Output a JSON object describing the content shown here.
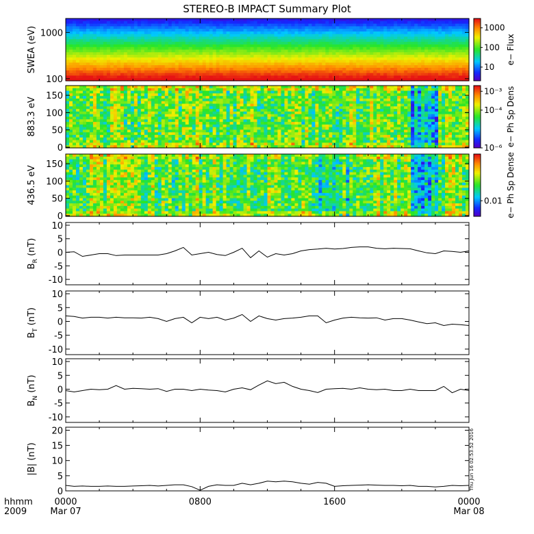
{
  "title": "STEREO-B IMPACT Summary Plot",
  "stamp": "Thu Jun 16 02:53:52 2016",
  "footer": {
    "row1_label": "hhmm",
    "row2_label": "2009",
    "xticks": [
      "0000",
      "0800",
      "1600",
      "0000"
    ],
    "xdates": [
      "Mar 07",
      "",
      "",
      "Mar 08"
    ]
  },
  "chart_data": [
    {
      "type": "heatmap",
      "ylabel": "SWEA (eV)",
      "yscale": "log",
      "ylim": [
        90,
        2000
      ],
      "yticks": [
        {
          "v": 1000,
          "label": "1000"
        },
        {
          "v": 100,
          "label": "100"
        }
      ],
      "colorbar": {
        "label": "e− Flux",
        "scale": "log",
        "range": [
          2,
          3000
        ],
        "ticks": [
          {
            "v": 1000,
            "label": "1000"
          },
          {
            "v": 100,
            "label": "100"
          },
          {
            "v": 10,
            "label": "10"
          }
        ]
      },
      "x_range_hours": [
        0,
        24
      ],
      "description_values": "energy-time spectrogram, flux decreasing with energy; ~1000 at 100 eV to ~5 at 2000 eV"
    },
    {
      "type": "heatmap",
      "ylabel": "883.3 eV",
      "yscale": "linear",
      "ylim": [
        0,
        180
      ],
      "yticks": [
        {
          "v": 150,
          "label": "150"
        },
        {
          "v": 100,
          "label": "100"
        },
        {
          "v": 50,
          "label": "50"
        },
        {
          "v": 0,
          "label": "0"
        }
      ],
      "colorbar": {
        "label": "e− Ph Sp Dens",
        "scale": "log",
        "range": [
          1e-06,
          0.002
        ],
        "ticks": [
          {
            "v": 0.001,
            "label": "10⁻³"
          },
          {
            "v": 0.0001,
            "label": "10⁻⁴"
          },
          {
            "v": 1e-06,
            "label": "10⁻⁶"
          }
        ]
      },
      "x_range_hours": [
        0,
        24
      ]
    },
    {
      "type": "heatmap",
      "ylabel": "436.5 eV",
      "yscale": "linear",
      "ylim": [
        0,
        180
      ],
      "yticks": [
        {
          "v": 150,
          "label": "150"
        },
        {
          "v": 100,
          "label": "100"
        },
        {
          "v": 50,
          "label": "50"
        },
        {
          "v": 0,
          "label": "0"
        }
      ],
      "colorbar": {
        "label": "e− Ph Sp Dense",
        "scale": "log",
        "range": [
          0.005,
          0.08
        ],
        "ticks": [
          {
            "v": 0.01,
            "label": "0.01"
          }
        ]
      },
      "x_range_hours": [
        0,
        24
      ]
    },
    {
      "type": "line",
      "ylabel": "B",
      "ylabel_sub": "R",
      "ylabel_unit": " (nT)",
      "ylim": [
        -12,
        11
      ],
      "yticks": [
        10,
        5,
        0,
        -5,
        -10
      ],
      "x_hours": [
        0,
        0.5,
        1,
        1.5,
        2,
        2.5,
        3,
        3.5,
        4,
        4.5,
        5,
        5.5,
        6,
        6.5,
        7,
        7.5,
        8,
        8.5,
        9,
        9.5,
        10,
        10.5,
        11,
        11.5,
        12,
        12.5,
        13,
        13.5,
        14,
        14.5,
        15,
        15.5,
        16,
        16.5,
        17,
        17.5,
        18,
        18.5,
        19,
        19.5,
        20,
        20.5,
        21,
        21.5,
        22,
        22.5,
        23,
        23.5,
        24
      ],
      "values": [
        0,
        0.2,
        -1.5,
        -1,
        -0.5,
        -0.5,
        -1.2,
        -1,
        -1,
        -1,
        -1,
        -1,
        -0.5,
        0.5,
        1.8,
        -1,
        -0.5,
        0,
        -0.8,
        -1.2,
        0,
        1.5,
        -2,
        0.5,
        -1.8,
        -0.5,
        -1,
        -0.5,
        0.5,
        1,
        1.2,
        1.5,
        1.2,
        1.4,
        1.8,
        2,
        2,
        1.5,
        1.3,
        1.5,
        1.4,
        1.3,
        0.5,
        -0.2,
        -0.5,
        0.5,
        0.3,
        0,
        0.5
      ]
    },
    {
      "type": "line",
      "ylabel": "B",
      "ylabel_sub": "T",
      "ylabel_unit": " (nT)",
      "ylim": [
        -12,
        11
      ],
      "yticks": [
        10,
        5,
        0,
        -5,
        -10
      ],
      "x_hours": [
        0,
        0.5,
        1,
        1.5,
        2,
        2.5,
        3,
        3.5,
        4,
        4.5,
        5,
        5.5,
        6,
        6.5,
        7,
        7.5,
        8,
        8.5,
        9,
        9.5,
        10,
        10.5,
        11,
        11.5,
        12,
        12.5,
        13,
        13.5,
        14,
        14.5,
        15,
        15.5,
        16,
        16.5,
        17,
        17.5,
        18,
        18.5,
        19,
        19.5,
        20,
        20.5,
        21,
        21.5,
        22,
        22.5,
        23,
        23.5,
        24
      ],
      "values": [
        2,
        1.8,
        1.2,
        1.5,
        1.5,
        1.2,
        1.5,
        1.3,
        1.3,
        1.2,
        1.5,
        1,
        0,
        1,
        1.5,
        -0.5,
        1.5,
        1,
        1.5,
        0.5,
        1.2,
        2.5,
        0,
        2,
        1,
        0.5,
        1,
        1.2,
        1.5,
        2,
        2,
        -0.5,
        0.5,
        1.2,
        1.5,
        1.3,
        1.2,
        1.3,
        0.5,
        1,
        1,
        0.5,
        -0.2,
        -0.8,
        -0.5,
        -1.5,
        -1,
        -1.2,
        -1.5
      ]
    },
    {
      "type": "line",
      "ylabel": "B",
      "ylabel_sub": "N",
      "ylabel_unit": " (nT)",
      "ylim": [
        -12,
        11
      ],
      "yticks": [
        10,
        5,
        0,
        -5,
        -10
      ],
      "x_hours": [
        0,
        0.5,
        1,
        1.5,
        2,
        2.5,
        3,
        3.5,
        4,
        4.5,
        5,
        5.5,
        6,
        6.5,
        7,
        7.5,
        8,
        8.5,
        9,
        9.5,
        10,
        10.5,
        11,
        11.5,
        12,
        12.5,
        13,
        13.5,
        14,
        14.5,
        15,
        15.5,
        16,
        16.5,
        17,
        17.5,
        18,
        18.5,
        19,
        19.5,
        20,
        20.5,
        21,
        21.5,
        22,
        22.5,
        23,
        23.5,
        24
      ],
      "values": [
        -0.5,
        -1,
        -0.5,
        0,
        -0.2,
        0,
        1.3,
        0,
        0.3,
        0.2,
        0,
        0.2,
        -0.8,
        0,
        0,
        -0.5,
        0,
        -0.3,
        -0.5,
        -1,
        0,
        0.5,
        -0.2,
        1.5,
        3,
        2,
        2.5,
        1,
        0,
        -0.5,
        -1.2,
        0,
        0.2,
        0.3,
        0,
        0.5,
        0,
        -0.2,
        0,
        -0.5,
        -0.5,
        0,
        -0.5,
        -0.5,
        -0.5,
        1,
        -1.3,
        0,
        -0.5
      ]
    },
    {
      "type": "line",
      "ylabel": "|B| (nT)",
      "ylim": [
        0,
        21
      ],
      "yticks": [
        20,
        15,
        10,
        5,
        0
      ],
      "x_hours": [
        0,
        0.5,
        1,
        1.5,
        2,
        2.5,
        3,
        3.5,
        4,
        4.5,
        5,
        5.5,
        6,
        6.5,
        7,
        7.5,
        8,
        8.5,
        9,
        9.5,
        10,
        10.5,
        11,
        11.5,
        12,
        12.5,
        13,
        13.5,
        14,
        14.5,
        15,
        15.5,
        16,
        16.5,
        17,
        17.5,
        18,
        18.5,
        19,
        19.5,
        20,
        20.5,
        21,
        21.5,
        22,
        22.5,
        23,
        23.5,
        24
      ],
      "values": [
        1.8,
        1.5,
        1.6,
        1.5,
        1.5,
        1.6,
        1.5,
        1.5,
        1.6,
        1.7,
        1.8,
        1.6,
        1.8,
        2,
        2,
        1.4,
        0.2,
        1.5,
        2,
        1.8,
        1.8,
        2.5,
        2,
        2.5,
        3.2,
        3,
        3.2,
        3,
        2.5,
        2.2,
        2.8,
        2.5,
        1.5,
        1.7,
        1.8,
        1.9,
        2,
        1.9,
        1.8,
        1.8,
        1.7,
        1.8,
        1.5,
        1.5,
        1.3,
        1.5,
        1.8,
        1.7,
        1.8
      ]
    }
  ]
}
